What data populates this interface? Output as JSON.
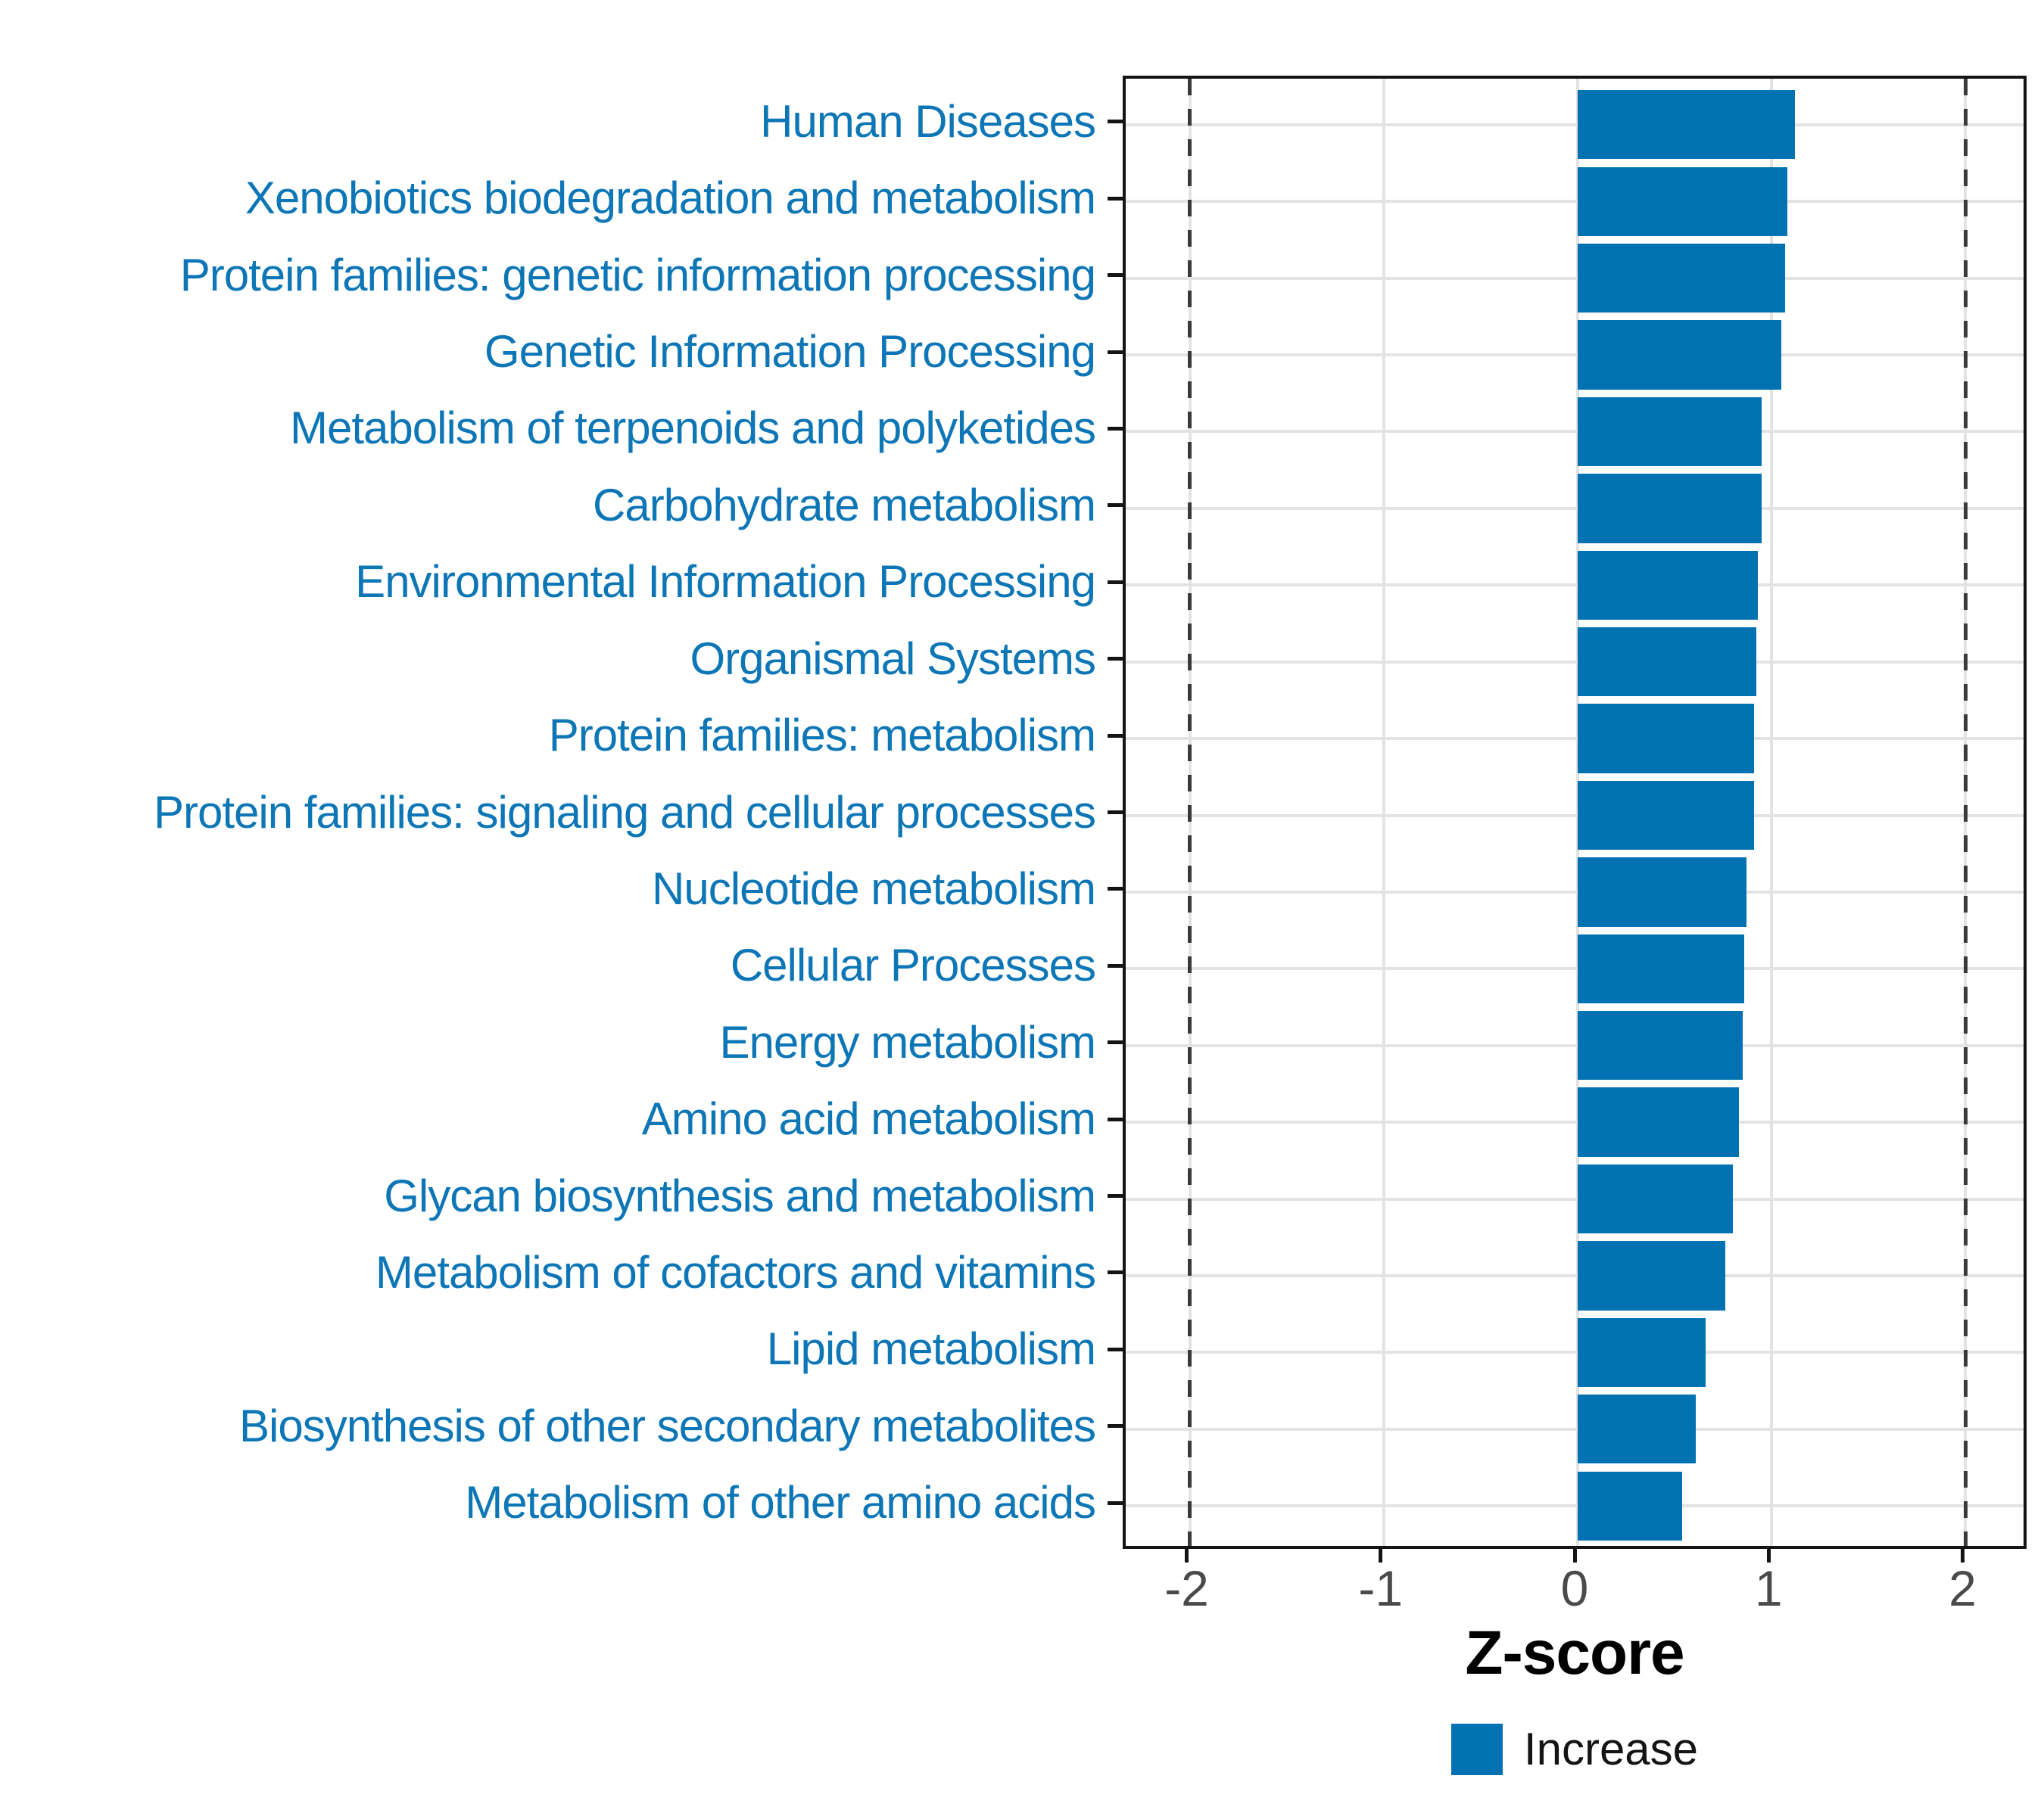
{
  "chart_data": {
    "type": "bar",
    "orientation": "horizontal",
    "title": "",
    "xlabel": "Z-score",
    "categories": [
      "Human Diseases",
      "Xenobiotics biodegradation and metabolism",
      "Protein families: genetic information processing",
      "Genetic Information Processing",
      "Metabolism of terpenoids and polyketides",
      "Carbohydrate metabolism",
      "Environmental Information Processing",
      "Organismal Systems",
      "Protein families: metabolism",
      "Protein families: signaling and cellular processes",
      "Nucleotide metabolism",
      "Cellular Processes",
      "Energy metabolism",
      "Amino acid metabolism",
      "Glycan biosynthesis and metabolism",
      "Metabolism of cofactors and vitamins",
      "Lipid metabolism",
      "Biosynthesis of other secondary metabolites",
      "Metabolism of other amino acids"
    ],
    "values": [
      1.12,
      1.08,
      1.07,
      1.05,
      0.95,
      0.95,
      0.93,
      0.92,
      0.91,
      0.91,
      0.87,
      0.86,
      0.85,
      0.83,
      0.8,
      0.76,
      0.66,
      0.61,
      0.54
    ],
    "x_ticks": [
      -2,
      -1,
      0,
      1,
      2
    ],
    "x_tick_labels": [
      "-2",
      "-1",
      "0",
      "1",
      "2"
    ],
    "xlim": [
      -2.33,
      2.33
    ],
    "threshold_lines": [
      -2,
      2
    ],
    "grid": true,
    "legend": {
      "position": "bottom",
      "entries": [
        {
          "label": "Increase",
          "color": "#0072B2"
        }
      ]
    },
    "colors": {
      "bar": "#0072B2",
      "category_label": "#0D76B6",
      "gridline": "#E3E3E3",
      "threshold": "#3A3A3A",
      "tick_label": "#4A4A4A",
      "axis_title": "#000000",
      "panel_border": "#141414"
    }
  }
}
